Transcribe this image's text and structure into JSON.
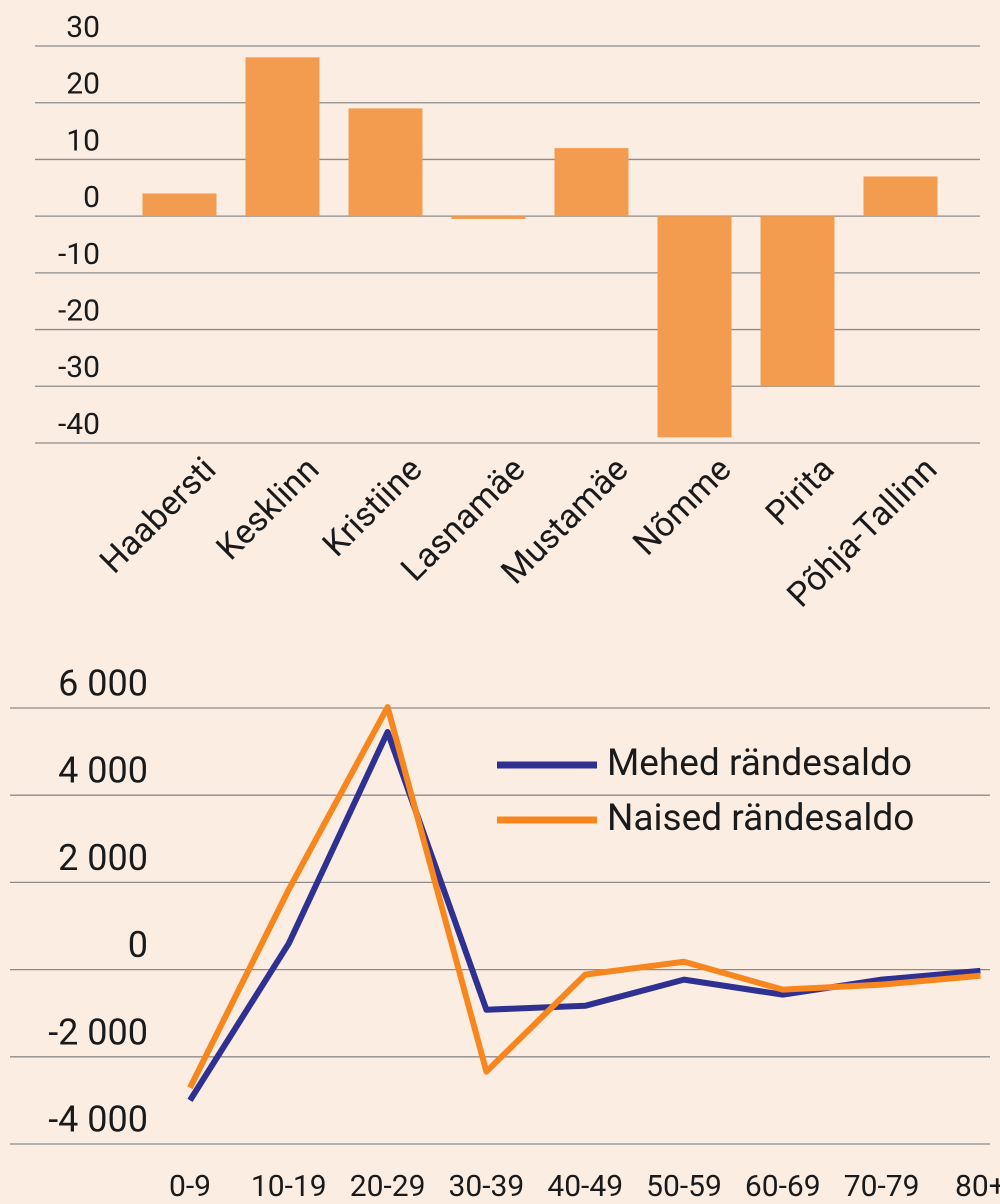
{
  "chart_data": [
    {
      "type": "bar",
      "categories": [
        "Haabersti",
        "Kesklinn",
        "Kristiine",
        "Lasnamäe",
        "Mustamäe",
        "Nõmme",
        "Pirita",
        "Põhja-Tallinn"
      ],
      "values": [
        4,
        28,
        19,
        -0.5,
        12,
        -39,
        -30,
        7
      ],
      "color": "#f39c4f",
      "ylim": [
        -40,
        30
      ],
      "yticks": [
        -40,
        -30,
        -20,
        -10,
        0,
        10,
        20,
        30
      ],
      "grid": true
    },
    {
      "type": "line",
      "categories": [
        "0-9",
        "10-19",
        "20-29",
        "30-39",
        "40-49",
        "50-59",
        "60-69",
        "70-79",
        "80+"
      ],
      "series": [
        {
          "name": "Mehed rändesaldo",
          "color": "#2e3192",
          "values": [
            -3000,
            600,
            5450,
            -920,
            -830,
            -230,
            -575,
            -230,
            -30
          ]
        },
        {
          "name": "Naised rändesaldo",
          "color": "#f7861e",
          "values": [
            -2710,
            1840,
            6020,
            -2340,
            -115,
            180,
            -460,
            -345,
            -140
          ]
        }
      ],
      "ylim": [
        -4000,
        6000
      ],
      "yticks": [
        {
          "value": -4000,
          "label": "-4 000"
        },
        {
          "value": -2000,
          "label": "-2 000"
        },
        0,
        {
          "value": 2000,
          "label": "2 000"
        },
        {
          "value": 4000,
          "label": "4 000"
        },
        {
          "value": 6000,
          "label": "6 000"
        }
      ],
      "grid": true,
      "legend": "upper right"
    }
  ]
}
